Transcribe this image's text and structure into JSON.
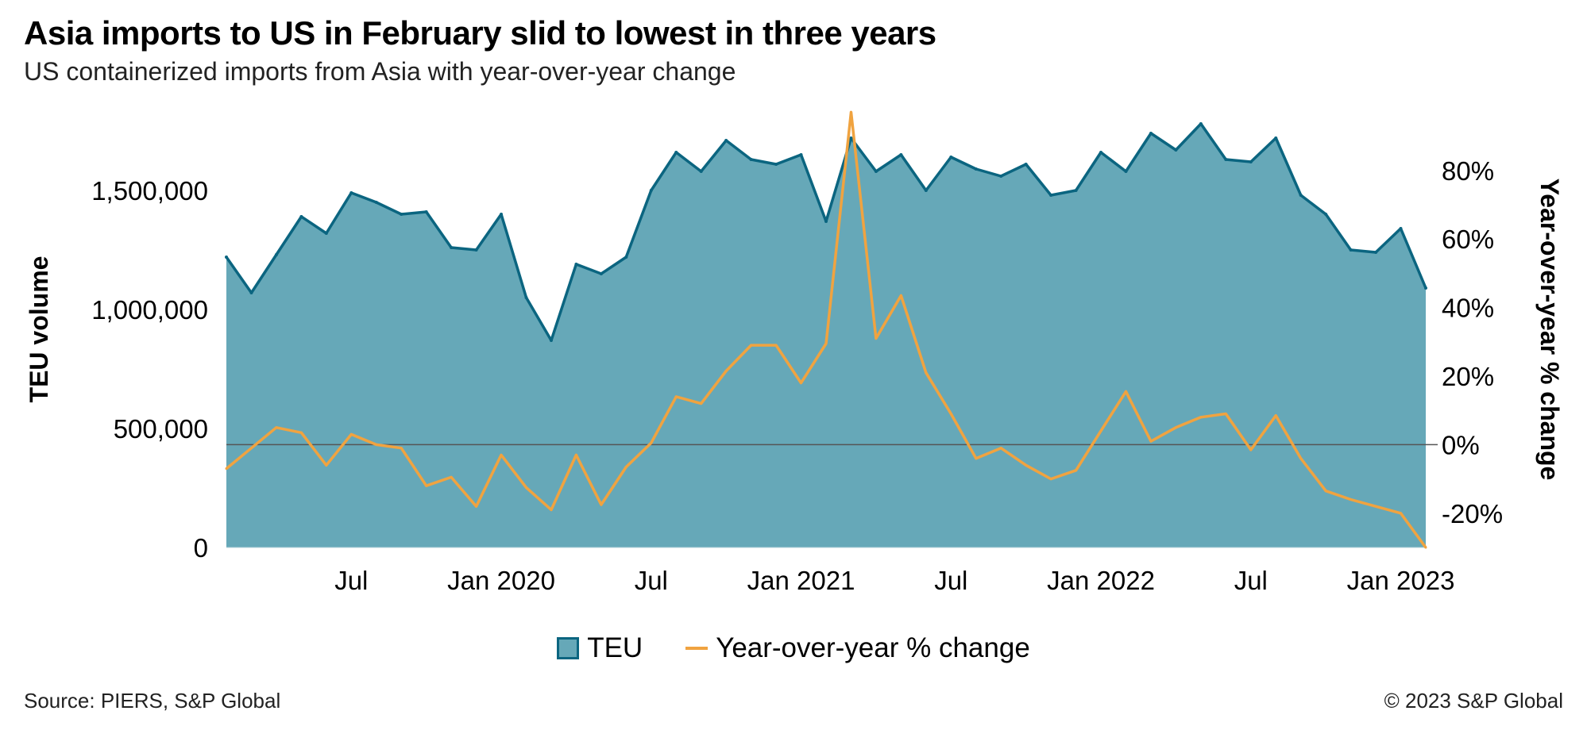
{
  "title": "Asia imports to US in February slid to lowest in three years",
  "subtitle": "US containerized imports from Asia with year-over-year change",
  "source": "Source: PIERS, S&P Global",
  "copyright": "© 2023 S&P Global",
  "colors": {
    "area_fill": "#66a8b8",
    "area_line": "#0b6580",
    "yoy_line": "#f0a340",
    "zero_line": "#555555"
  },
  "chart_data": {
    "type": "area",
    "x": [
      "2019-02",
      "2019-03",
      "2019-04",
      "2019-05",
      "2019-06",
      "2019-07",
      "2019-08",
      "2019-09",
      "2019-10",
      "2019-11",
      "2019-12",
      "2020-01",
      "2020-02",
      "2020-03",
      "2020-04",
      "2020-05",
      "2020-06",
      "2020-07",
      "2020-08",
      "2020-09",
      "2020-10",
      "2020-11",
      "2020-12",
      "2021-01",
      "2021-02",
      "2021-03",
      "2021-04",
      "2021-05",
      "2021-06",
      "2021-07",
      "2021-08",
      "2021-09",
      "2021-10",
      "2021-11",
      "2021-12",
      "2022-01",
      "2022-02",
      "2022-03",
      "2022-04",
      "2022-05",
      "2022-06",
      "2022-07",
      "2022-08",
      "2022-09",
      "2022-10",
      "2022-11",
      "2022-12",
      "2023-01",
      "2023-02"
    ],
    "x_ticks": [
      "Jul",
      "Jan 2020",
      "Jul",
      "Jan 2021",
      "Jul",
      "Jan 2022",
      "Jul",
      "Jan 2023"
    ],
    "x_tick_dates": [
      "2019-07",
      "2020-01",
      "2020-07",
      "2021-01",
      "2021-07",
      "2022-01",
      "2022-07",
      "2023-01"
    ],
    "series": [
      {
        "name": "TEU",
        "axis": "left",
        "type": "area",
        "values": [
          1220000,
          1070000,
          1230000,
          1390000,
          1320000,
          1490000,
          1450000,
          1400000,
          1410000,
          1260000,
          1250000,
          1400000,
          1050000,
          870000,
          1190000,
          1150000,
          1220000,
          1500000,
          1660000,
          1580000,
          1710000,
          1630000,
          1610000,
          1650000,
          1370000,
          1720000,
          1580000,
          1650000,
          1500000,
          1640000,
          1590000,
          1560000,
          1610000,
          1480000,
          1500000,
          1660000,
          1580000,
          1740000,
          1670000,
          1780000,
          1630000,
          1620000,
          1720000,
          1480000,
          1400000,
          1250000,
          1240000,
          1340000,
          1090000
        ]
      },
      {
        "name": "Year-over-year % change",
        "axis": "right",
        "type": "line",
        "values": [
          -7,
          -1,
          5,
          3.5,
          -6,
          3,
          0,
          -1,
          -12,
          -9.5,
          -18,
          -3,
          -12.5,
          -19,
          -3,
          -17.5,
          -6.5,
          0.5,
          14,
          12,
          21.5,
          29,
          29,
          18,
          29.5,
          97,
          31,
          43.5,
          21,
          9,
          -4,
          -1,
          -6,
          -10,
          -7.5,
          4,
          15.5,
          1,
          5,
          8,
          9,
          -1.5,
          8.5,
          -4,
          -13.5,
          -16,
          -18,
          -20,
          -30
        ]
      }
    ],
    "ylabel": "TEU volume",
    "y2label": "Year-over-year % change",
    "ylim": [
      0,
      1800000
    ],
    "yticks": [
      0,
      500000,
      1000000,
      1500000
    ],
    "ytick_labels": [
      "0",
      "500,000",
      "1,000,000",
      "1,500,000"
    ],
    "y2lim": [
      -30,
      95
    ],
    "y2ticks": [
      -20,
      0,
      20,
      40,
      60,
      80
    ],
    "y2tick_labels": [
      "-20%",
      "0%",
      "20%",
      "40%",
      "60%",
      "80%"
    ],
    "legend": "bottom"
  }
}
